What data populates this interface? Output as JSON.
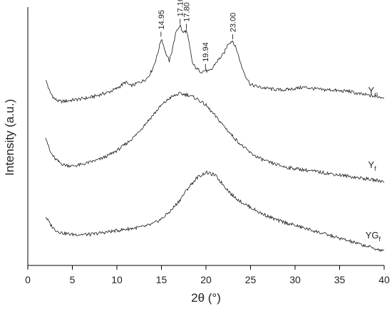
{
  "chart_data": {
    "type": "line",
    "xlabel": "2θ (°)",
    "ylabel": "Intensity (a.u.)",
    "xlim": [
      0,
      40
    ],
    "ylim": [
      0,
      100
    ],
    "y_tick_labels_shown": false,
    "grid": false,
    "x_ticks": [
      {
        "value": 0,
        "label": "0"
      },
      {
        "value": 5,
        "label": "5"
      },
      {
        "value": 10,
        "label": "10"
      },
      {
        "value": 15,
        "label": "15"
      },
      {
        "value": 20,
        "label": "20"
      },
      {
        "value": 25,
        "label": "25"
      },
      {
        "value": 30,
        "label": "30"
      },
      {
        "value": 35,
        "label": "35"
      },
      {
        "value": 40,
        "label": "40"
      }
    ],
    "series": [
      {
        "name": "Yp",
        "label_main": "Y",
        "label_sub": "p",
        "label_x": 38.2,
        "label_y": 66.5,
        "x": [
          2,
          2.5,
          3,
          3.5,
          4,
          5,
          6,
          7,
          8,
          9,
          10,
          11,
          11.5,
          12,
          12.5,
          13,
          13.5,
          14,
          14.5,
          15,
          15.5,
          15.9,
          16.3,
          16.7,
          17.1,
          17.4,
          17.8,
          18.1,
          18.5,
          19,
          19.5,
          19.94,
          20.3,
          20.7,
          21,
          21.5,
          22,
          22.5,
          23,
          23.5,
          24,
          24.5,
          25,
          26,
          27,
          28,
          29,
          30,
          31,
          32,
          33,
          34,
          35,
          36,
          37,
          38,
          39,
          40
        ],
        "y": [
          72,
          67,
          64.5,
          63.5,
          63.5,
          64,
          64.5,
          65,
          66,
          67,
          68.5,
          71,
          69.5,
          70,
          71,
          71.5,
          73,
          76,
          81,
          88,
          82,
          79,
          85,
          91,
          93,
          90,
          91,
          86,
          78,
          76,
          75,
          75.5,
          75,
          76,
          78,
          80,
          82,
          86,
          87,
          83,
          77,
          73,
          70,
          69,
          68.5,
          68,
          68,
          68.5,
          69,
          68.5,
          68,
          68,
          67.5,
          67.5,
          66.5,
          66,
          65.5,
          65
        ]
      },
      {
        "name": "Yf",
        "label_main": "Y",
        "label_sub": "f",
        "label_x": 38.2,
        "label_y": 37.8,
        "x": [
          2,
          2.5,
          3,
          3.5,
          4,
          5,
          6,
          7,
          8,
          9,
          10,
          11,
          12,
          13,
          14,
          15,
          16,
          17,
          18,
          19,
          20,
          21,
          22,
          23,
          24,
          25,
          26,
          27,
          28,
          29,
          30,
          31,
          32,
          33,
          34,
          35,
          36,
          37,
          38,
          39,
          40
        ],
        "y": [
          50,
          44,
          41.5,
          40,
          39,
          38.5,
          39,
          40,
          41,
          42.5,
          44.5,
          47,
          50,
          54,
          58,
          62,
          65,
          66.5,
          66,
          64.5,
          62,
          58,
          54,
          50,
          46.5,
          43.5,
          41.5,
          40,
          39,
          38,
          37.5,
          37,
          36.5,
          36,
          35.5,
          35,
          34.5,
          34,
          33.5,
          33,
          32.5
        ]
      },
      {
        "name": "YGf",
        "label_main": "YG",
        "label_sub": "f",
        "label_x": 37.9,
        "label_y": 10.5,
        "x": [
          2,
          2.5,
          3,
          3.5,
          4,
          5,
          6,
          7,
          8,
          9,
          10,
          11,
          12,
          13,
          14,
          15,
          16,
          17,
          18,
          19,
          20,
          21,
          22,
          23,
          24,
          25,
          26,
          27,
          28,
          29,
          30,
          31,
          32,
          33,
          34,
          35,
          36,
          37,
          38,
          39,
          40
        ],
        "y": [
          19,
          16,
          14,
          13,
          12.5,
          12,
          12,
          12,
          12.5,
          13,
          13.5,
          14,
          14.5,
          15,
          16,
          18,
          21,
          25,
          30,
          34,
          36,
          35,
          31,
          27,
          24.5,
          22.5,
          20.5,
          19,
          17.5,
          16.5,
          15.5,
          14.5,
          13.5,
          12.5,
          11.5,
          10.5,
          9.5,
          8.5,
          7.5,
          6.5,
          5.5
        ]
      }
    ],
    "annotations": [
      {
        "text": "14.95",
        "x": 14.95,
        "y": 88
      },
      {
        "text": "17.10",
        "x": 17.1,
        "y": 93
      },
      {
        "text": "17.80",
        "x": 17.8,
        "y": 91
      },
      {
        "text": "19.94",
        "x": 19.94,
        "y": 75.5
      },
      {
        "text": "23.00",
        "x": 23.0,
        "y": 87
      }
    ]
  }
}
